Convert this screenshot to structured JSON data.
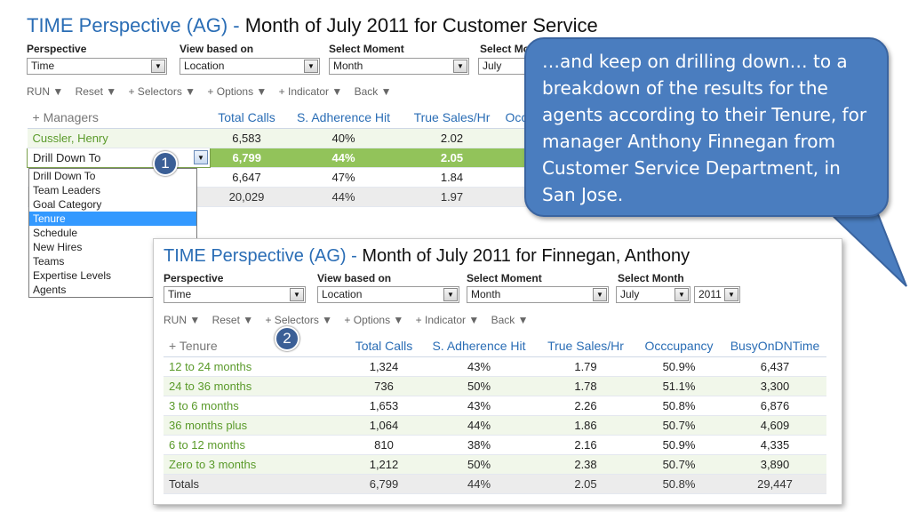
{
  "screen1": {
    "title_brand": "TIME Perspective (AG) -",
    "title_rest": "Month of July 2011 for Customer Service",
    "controls": {
      "perspective_label": "Perspective",
      "perspective_value": "Time",
      "view_label": "View based on",
      "view_value": "Location",
      "moment_label": "Select Moment",
      "moment_value": "Month",
      "month_label": "Select Mo",
      "month_value": "July"
    },
    "toolbar": [
      "RUN ▼",
      "Reset ▼",
      "+ Selectors ▼",
      "+ Options ▼",
      "+ Indicator ▼",
      "Back ▼"
    ],
    "table": {
      "headers": [
        "+ Managers",
        "Total Calls",
        "S. Adherence Hit",
        "True Sales/Hr",
        "Occ"
      ],
      "rows": [
        [
          "Cussler, Henry",
          "6,583",
          "40%",
          "2.02",
          ""
        ],
        [
          "Drill Down To",
          "6,799",
          "44%",
          "2.05",
          ""
        ],
        [
          "",
          "6,647",
          "47%",
          "1.84",
          ""
        ],
        [
          "",
          "20,029",
          "44%",
          "1.97",
          ""
        ]
      ]
    },
    "dropdown": {
      "items": [
        "Drill Down To",
        "Team Leaders",
        "Goal Category",
        "Tenure",
        "Schedule",
        "New Hires",
        "Teams",
        "Expertise Levels",
        "Agents"
      ],
      "selected": "Tenure"
    },
    "badge": "1"
  },
  "screen2": {
    "title_brand": "TIME Perspective (AG) -",
    "title_rest": "Month of July 2011 for Finnegan, Anthony",
    "controls": {
      "perspective_label": "Perspective",
      "perspective_value": "Time",
      "view_label": "View based on",
      "view_value": "Location",
      "moment_label": "Select Moment",
      "moment_value": "Month",
      "month_label": "Select Month",
      "month_value": "July",
      "year_value": "2011"
    },
    "toolbar": [
      "RUN ▼",
      "Reset ▼",
      "+ Selectors ▼",
      "+ Options ▼",
      "+ Indicator ▼",
      "Back ▼"
    ],
    "table": {
      "headers": [
        "+ Tenure",
        "Total Calls",
        "S. Adherence Hit",
        "True Sales/Hr",
        "Occcupancy",
        "BusyOnDNTime"
      ],
      "rows": [
        [
          "12 to 24 months",
          "1,324",
          "43%",
          "1.79",
          "50.9%",
          "6,437"
        ],
        [
          "24 to 36 months",
          "736",
          "50%",
          "1.78",
          "51.1%",
          "3,300"
        ],
        [
          "3 to 6 months",
          "1,653",
          "43%",
          "2.26",
          "50.8%",
          "6,876"
        ],
        [
          "36 months plus",
          "1,064",
          "44%",
          "1.86",
          "50.7%",
          "4,609"
        ],
        [
          "6 to 12 months",
          "810",
          "38%",
          "2.16",
          "50.9%",
          "4,335"
        ],
        [
          "Zero to 3 months",
          "1,212",
          "50%",
          "2.38",
          "50.7%",
          "3,890"
        ],
        [
          "Totals",
          "6,799",
          "44%",
          "2.05",
          "50.8%",
          "29,447"
        ]
      ]
    },
    "badge": "2"
  },
  "callout": {
    "text": "…and keep on drilling down… to a breakdown of the results for the agents according to their Tenure, for manager Anthony Finnegan from Customer Service Department, in San Jose."
  },
  "colors": {
    "brand_blue": "#2a6db5",
    "row_green_text": "#5a9a2a",
    "highlight_green": "#92c35a",
    "callout_blue": "#4a7dbf",
    "dropdown_selected": "#3399ff"
  }
}
